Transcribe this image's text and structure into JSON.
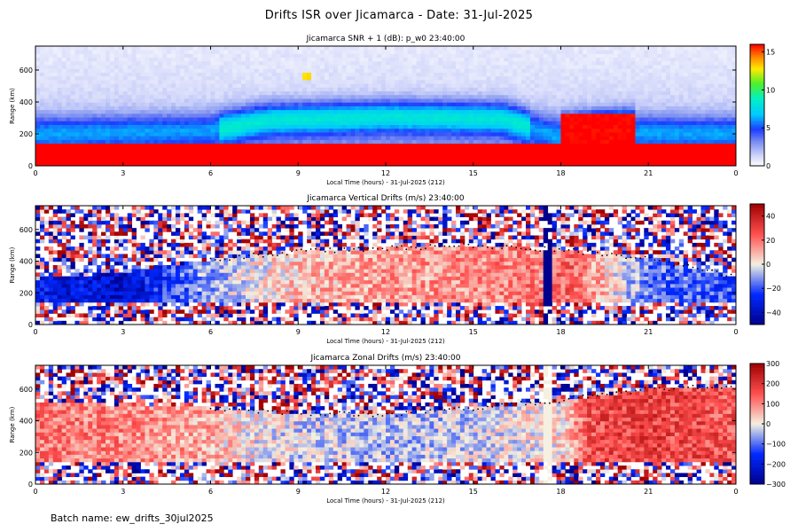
{
  "title": "Drifts ISR over Jicamarca - Date: 31-Jul-2025",
  "batch_label": "Batch name: ew_drifts_30jul2025",
  "chart_data": [
    {
      "type": "heatmap",
      "title": "Jicamarca SNR + 1 (dB): p_w0 23:40:00",
      "xlabel": "Local Time (hours) - 31-Jul-2025 (212)",
      "ylabel": "Range (km)",
      "x_ticks": [
        "0",
        "3",
        "6",
        "9",
        "12",
        "15",
        "18",
        "21",
        "0"
      ],
      "y_ticks": [
        "0",
        "200",
        "400",
        "600"
      ],
      "xlim": [
        0,
        24
      ],
      "ylim": [
        0,
        750
      ],
      "colorbar": {
        "colormap": "rainbow",
        "range": [
          0,
          16
        ],
        "ticks": [
          "15",
          "10",
          "5",
          "0"
        ],
        "tick_values": [
          15,
          10,
          5,
          0
        ]
      },
      "layers": [
        {
          "label": "strong echo below 150 km",
          "value": 16,
          "hours": [
            0,
            24
          ]
        },
        {
          "label": "F-region band peak altitude km",
          "hours": [
            0,
            6,
            8,
            12,
            16,
            18,
            20,
            24
          ],
          "km": [
            210,
            230,
            290,
            310,
            300,
            190,
            220,
            210
          ]
        },
        {
          "label": "noise floor level",
          "value": 0.5
        }
      ],
      "highlight": {
        "hours": [
          9.1,
          9.5
        ],
        "km": [
          540,
          590
        ],
        "value": 13
      }
    },
    {
      "type": "heatmap",
      "title": "Jicamarca Vertical Drifts (m/s) 23:40:00",
      "xlabel": "Local Time (hours) - 31-Jul-2025 (212)",
      "ylabel": "Range (km)",
      "x_ticks": [
        "0",
        "3",
        "6",
        "9",
        "12",
        "15",
        "18",
        "21",
        "0"
      ],
      "y_ticks": [
        "0",
        "200",
        "400",
        "600"
      ],
      "xlim": [
        0,
        24
      ],
      "ylim": [
        0,
        750
      ],
      "colorbar": {
        "colormap": "blue-white-red",
        "range": [
          -50,
          50
        ],
        "ticks": [
          "40",
          "20",
          "0",
          "−20",
          "−40"
        ],
        "tick_values": [
          40,
          20,
          0,
          -20,
          -40
        ]
      },
      "drift_profile": {
        "hours": [
          0,
          3,
          6,
          9,
          12,
          15,
          17.5,
          18.5,
          21,
          24
        ],
        "mps": [
          -30,
          -38,
          -8,
          8,
          12,
          15,
          18,
          22,
          -15,
          -20
        ]
      },
      "boundary_km": {
        "hours": [
          0,
          3,
          6,
          9,
          12,
          15,
          18,
          21,
          24
        ],
        "km": [
          290,
          330,
          410,
          460,
          480,
          500,
          470,
          420,
          300
        ]
      }
    },
    {
      "type": "heatmap",
      "title": "Jicamarca Zonal Drifts (m/s) 23:40:00",
      "xlabel": "Local Time (hours) - 31-Jul-2025 (212)",
      "ylabel": "Range (km)",
      "x_ticks": [
        "0",
        "3",
        "6",
        "9",
        "12",
        "15",
        "18",
        "21",
        "0"
      ],
      "y_ticks": [
        "0",
        "200",
        "400",
        "600"
      ],
      "xlim": [
        0,
        24
      ],
      "ylim": [
        0,
        750
      ],
      "colorbar": {
        "colormap": "blue-white-red",
        "range": [
          -300,
          300
        ],
        "ticks": [
          "300",
          "200",
          "100",
          "0",
          "−100",
          "−200",
          "−300"
        ],
        "tick_values": [
          300,
          200,
          100,
          0,
          -100,
          -200,
          -300
        ]
      },
      "drift_profile": {
        "hours": [
          0,
          3,
          6,
          7,
          9,
          12,
          15,
          18,
          19,
          21,
          24
        ],
        "mps": [
          110,
          100,
          60,
          20,
          -20,
          -40,
          -20,
          20,
          160,
          180,
          150
        ]
      },
      "boundary_km": {
        "hours": [
          0,
          3,
          6,
          9,
          12,
          15,
          18,
          21,
          24
        ],
        "km": [
          520,
          500,
          480,
          450,
          440,
          480,
          530,
          600,
          620
        ]
      }
    }
  ]
}
